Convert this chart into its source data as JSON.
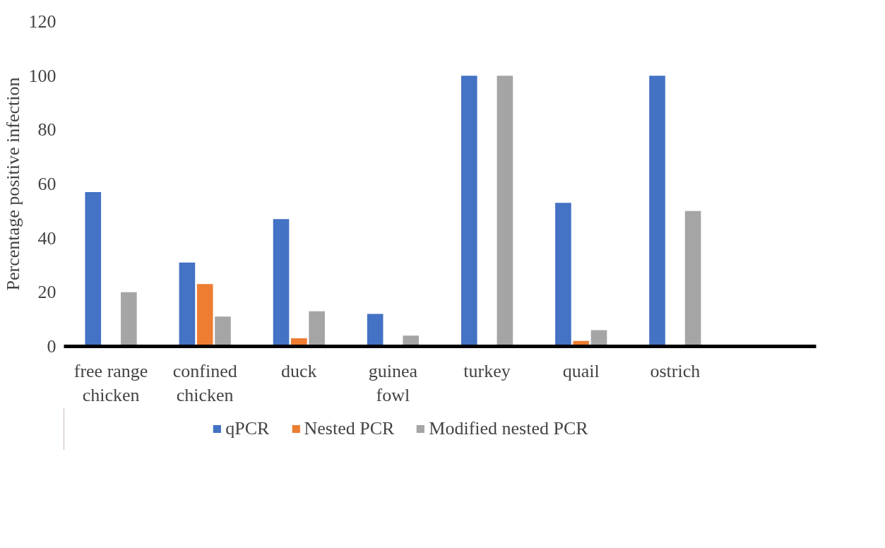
{
  "chart_data": {
    "type": "bar",
    "ylabel": "Percentage positive infection",
    "categories": [
      "free range chicken",
      "confined chicken",
      "duck",
      "guinea fowl",
      "turkey",
      "quail",
      "ostrich",
      null
    ],
    "series": [
      {
        "name": "qPCR",
        "color": "#4472c4",
        "values": [
          57,
          31,
          47,
          12,
          100,
          53,
          100,
          null
        ]
      },
      {
        "name": "Nested PCR",
        "color": "#ed7d31",
        "values": [
          0,
          23,
          3,
          0,
          0,
          2,
          0,
          null
        ]
      },
      {
        "name": "Modified nested PCR",
        "color": "#a5a5a5",
        "values": [
          20,
          11,
          13,
          4,
          100,
          6,
          50,
          null
        ]
      }
    ],
    "ylim": [
      0,
      120
    ],
    "yticks": [
      0,
      20,
      40,
      60,
      80,
      100,
      120
    ],
    "grid": false,
    "legend": "bottom"
  }
}
